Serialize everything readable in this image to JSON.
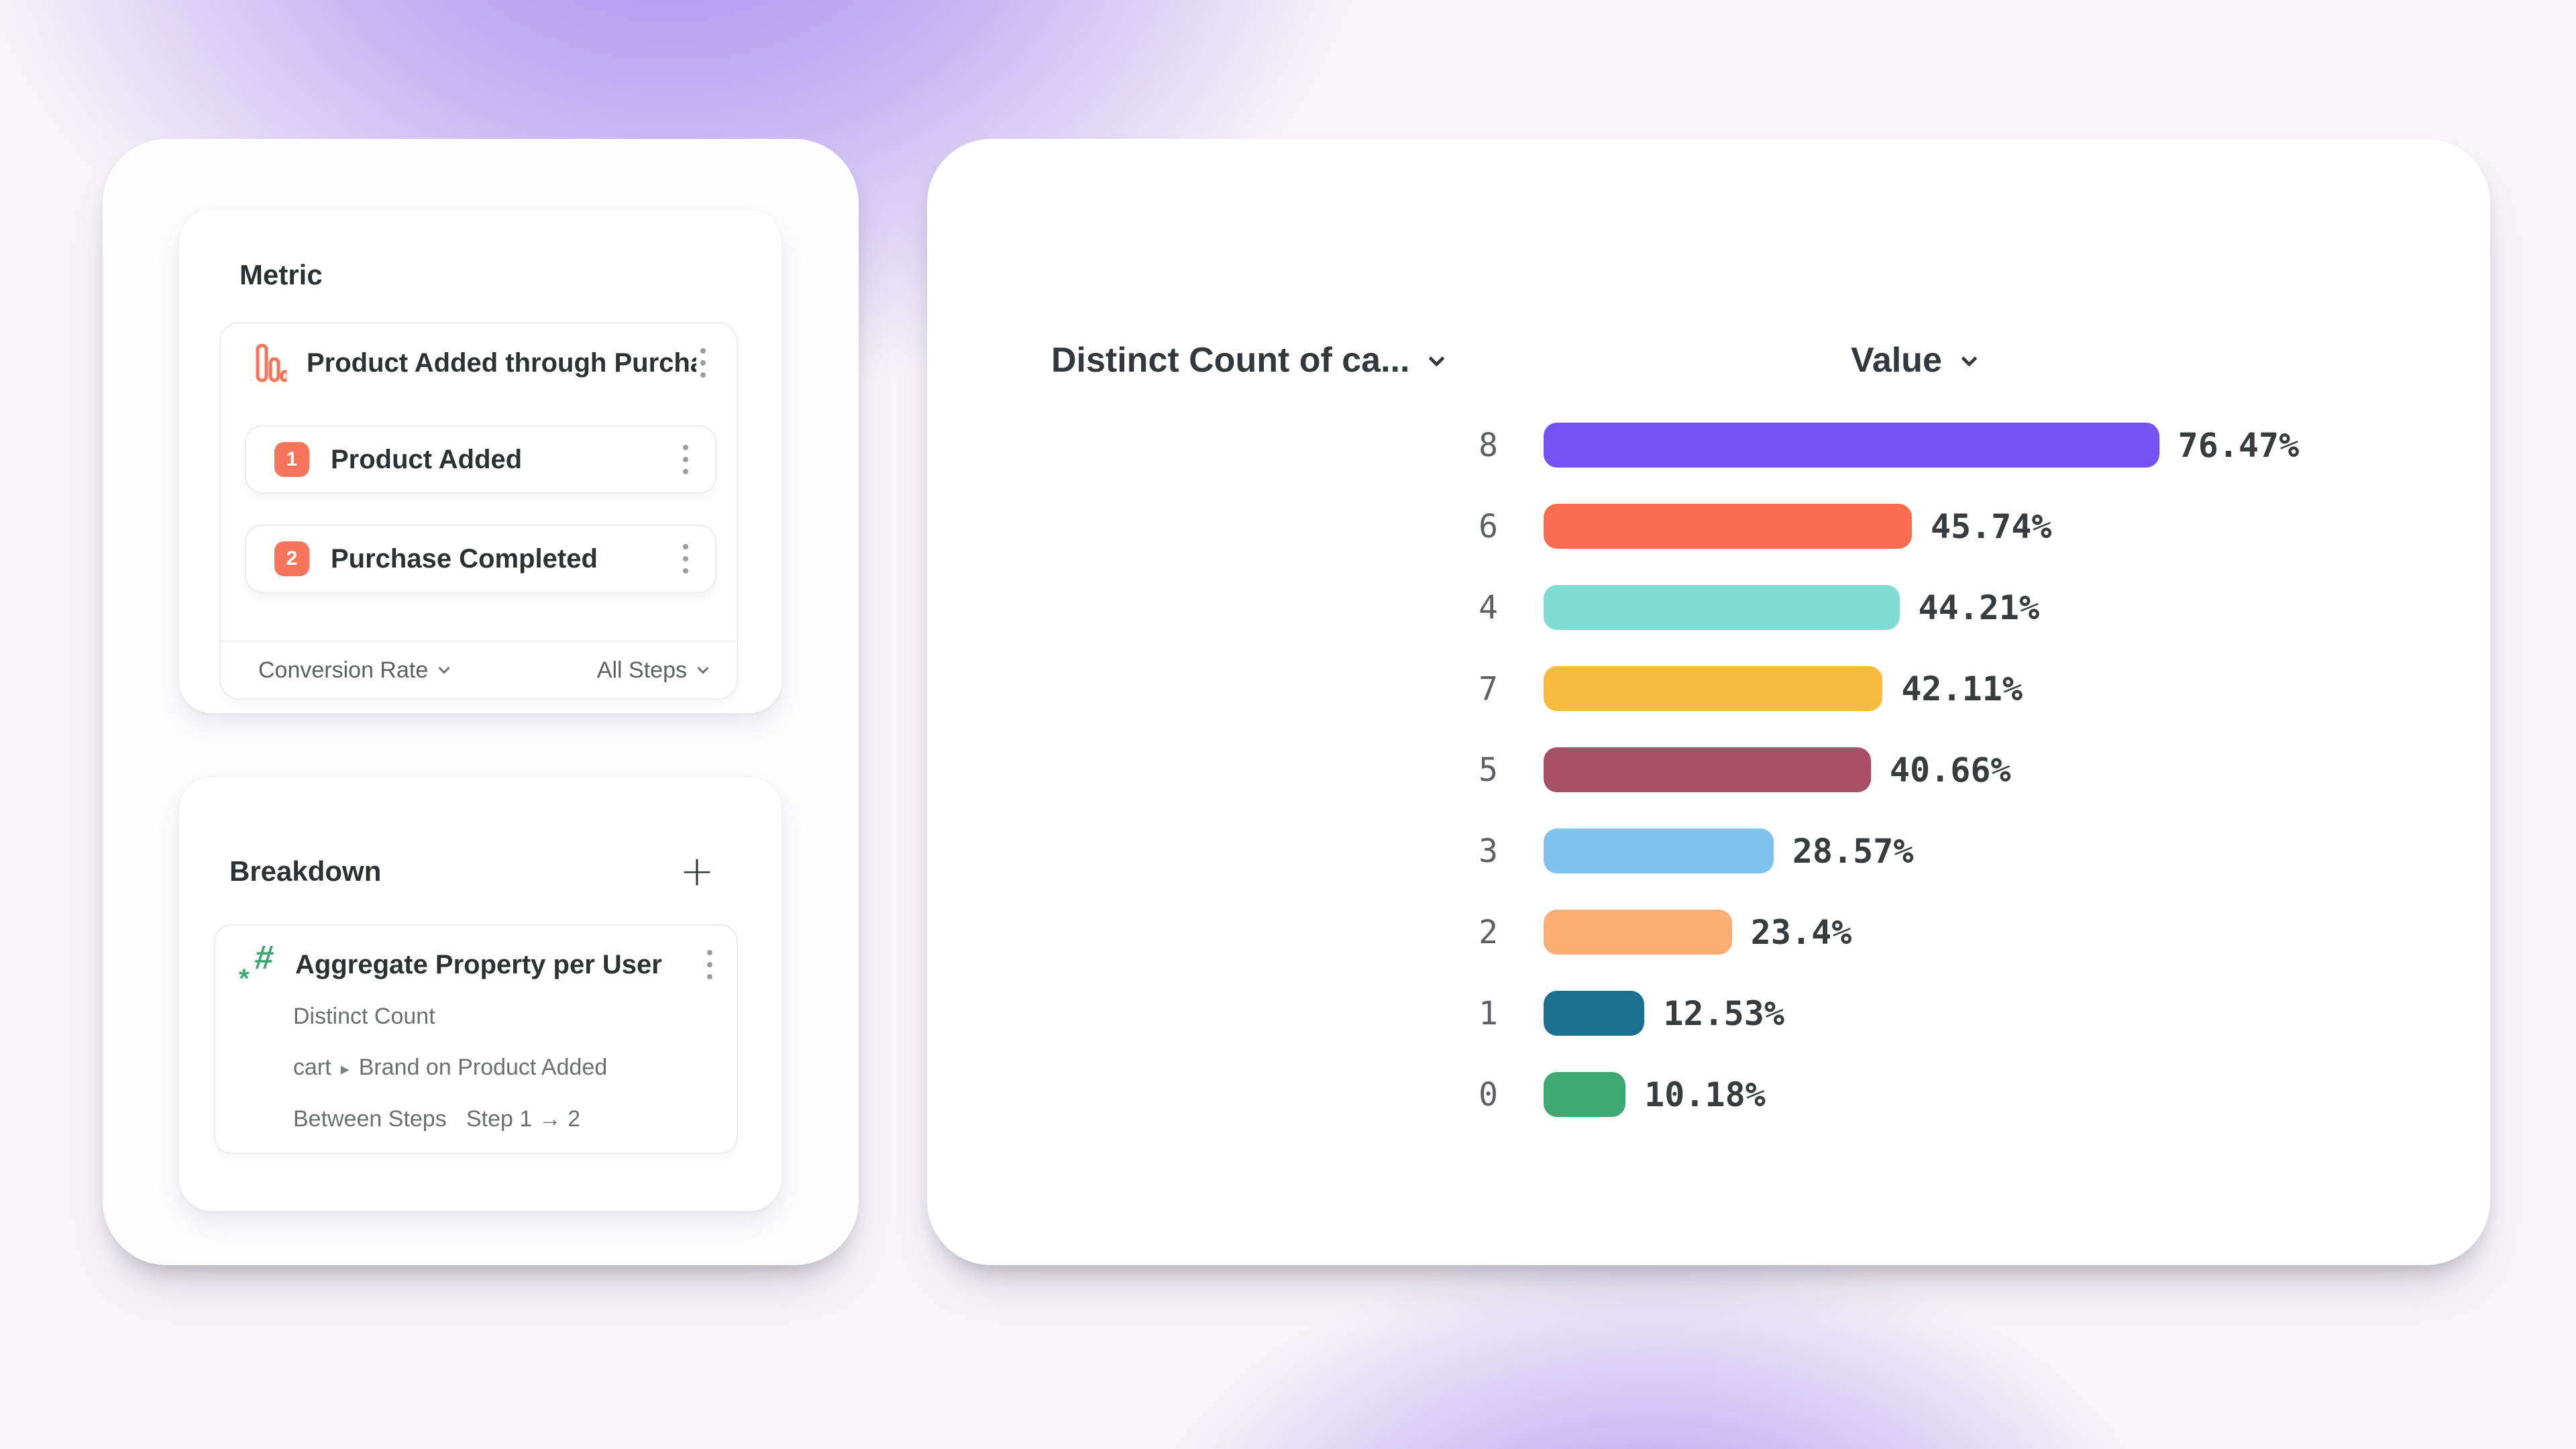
{
  "background": {
    "accent_purple": "#a484f0",
    "base": "#f6f4f7"
  },
  "metric_panel": {
    "title": "Metric",
    "metric": {
      "icon": "funnel-bars-icon",
      "icon_color": "#f4765a",
      "name": "Product Added through Purcha...",
      "badge_color": "#f7755a",
      "steps": [
        {
          "number": "1",
          "label": "Product Added"
        },
        {
          "number": "2",
          "label": "Purchase Completed"
        }
      ],
      "footer": {
        "conversion_label": "Conversion Rate",
        "steps_scope_label": "All Steps"
      }
    }
  },
  "breakdown_panel": {
    "title": "Breakdown",
    "add_button": "+",
    "property": {
      "icon": "numeric-property-icon",
      "icon_color": "#3da873",
      "icon_glyphs": {
        "hash": "#",
        "star": "*"
      },
      "name": "Aggregate Property per User",
      "aggregation": "Distinct Count",
      "path": {
        "prefix": "cart",
        "separator": "▸",
        "suffix": "Brand on Product Added"
      },
      "between": {
        "label": "Between Steps",
        "value": "Step 1 → 2"
      }
    }
  },
  "chart": {
    "left_column_header": "Distinct Count of ca...",
    "right_column_header": "Value"
  },
  "chart_data": {
    "type": "bar",
    "orientation": "horizontal",
    "title": "",
    "xlabel": "Value",
    "ylabel": "Distinct Count of ca...",
    "categories": [
      "8",
      "6",
      "4",
      "7",
      "5",
      "3",
      "2",
      "1",
      "0"
    ],
    "values": [
      76.47,
      45.74,
      44.21,
      42.11,
      40.66,
      28.57,
      23.4,
      12.53,
      10.18
    ],
    "value_labels": [
      "76.47%",
      "45.74%",
      "44.21%",
      "42.11%",
      "40.66%",
      "28.57%",
      "23.4%",
      "12.53%",
      "10.18%"
    ],
    "colors": [
      "#7351f2",
      "#f96c4e",
      "#7edcd1",
      "#f7ba3e",
      "#a74f66",
      "#7fc2ee",
      "#fbae74",
      "#19718f",
      "#3ea873"
    ],
    "xlim": [
      0,
      100
    ],
    "unit": "%",
    "grid": false,
    "legend": false
  }
}
